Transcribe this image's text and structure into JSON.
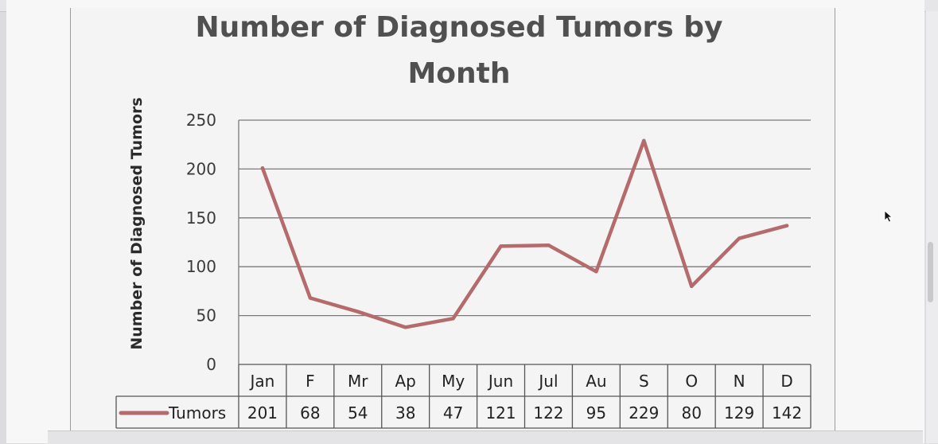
{
  "chart_data": {
    "type": "line",
    "title_line1": "Number of Diagnosed Tumors by",
    "title_line2": "Month",
    "ylabel": "Number of Diagnosed Tumors",
    "xlabel": "",
    "categories": [
      "Jan",
      "F",
      "Mr",
      "Ap",
      "My",
      "Jun",
      "Jul",
      "Au",
      "S",
      "O",
      "N",
      "D"
    ],
    "series": [
      {
        "name": "Tumors",
        "values": [
          201,
          68,
          54,
          38,
          47,
          121,
          122,
          95,
          229,
          80,
          129,
          142
        ],
        "color": "#b56a6c"
      }
    ],
    "ylim": [
      0,
      250
    ],
    "yticks": [
      0,
      50,
      100,
      150,
      200,
      250
    ],
    "grid": true,
    "legend": "data-table-below",
    "data_table": true
  }
}
